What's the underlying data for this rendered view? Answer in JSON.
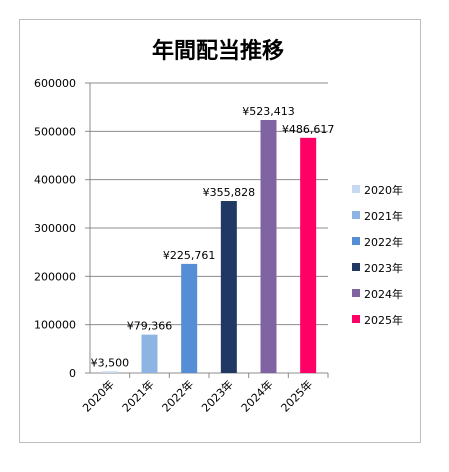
{
  "chart_data": {
    "type": "bar",
    "title": "年間配当推移",
    "categories": [
      "2020年",
      "2021年",
      "2022年",
      "2023年",
      "2024年",
      "2025年"
    ],
    "values": [
      3500,
      79366,
      225761,
      355828,
      523413,
      486617
    ],
    "data_labels": [
      "¥3,500",
      "¥79,366",
      "¥225,761",
      "¥355,828",
      "¥523,413",
      "¥486,617"
    ],
    "colors": [
      "#c6d9f0",
      "#8db4e2",
      "#558ed5",
      "#1f3864",
      "#8064a2",
      "#ff0066"
    ],
    "ylim": [
      0,
      600000
    ],
    "yticks": [
      "0",
      "100000",
      "200000",
      "300000",
      "400000",
      "500000",
      "600000"
    ],
    "grid": true,
    "legend_position": "right"
  }
}
